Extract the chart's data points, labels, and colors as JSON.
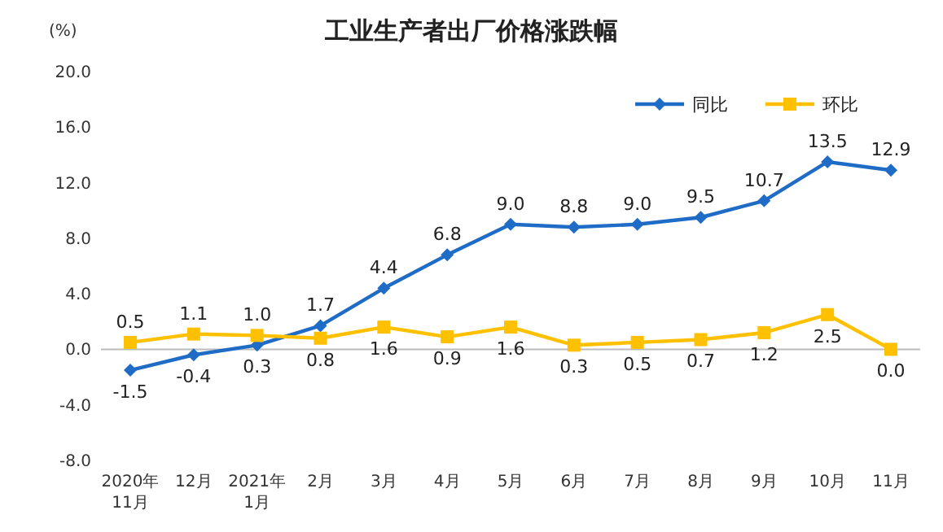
{
  "chart_data": {
    "type": "line",
    "title": "工业生产者出厂价格涨跌幅",
    "ylabel": "(%)",
    "categories": [
      "2020年\n11月",
      "12月",
      "2021年\n1月",
      "2月",
      "3月",
      "4月",
      "5月",
      "6月",
      "7月",
      "8月",
      "9月",
      "10月",
      "11月"
    ],
    "series": [
      {
        "name": "同比",
        "color": "#1f6cc6",
        "marker": "diamond",
        "values": [
          -1.5,
          -0.4,
          0.3,
          1.7,
          4.4,
          6.8,
          9.0,
          8.8,
          9.0,
          9.5,
          10.7,
          13.5,
          12.9
        ],
        "value_labels": [
          "-1.5",
          "-0.4",
          "0.3",
          "1.7",
          "4.4",
          "6.8",
          "9.0",
          "8.8",
          "9.0",
          "9.5",
          "10.7",
          "13.5",
          "12.9"
        ]
      },
      {
        "name": "环比",
        "color": "#ffc000",
        "marker": "square",
        "values": [
          0.5,
          1.1,
          1.0,
          0.8,
          1.6,
          0.9,
          1.6,
          0.3,
          0.5,
          0.7,
          1.2,
          2.5,
          0.0
        ],
        "value_labels": [
          "0.5",
          "1.1",
          "1.0",
          "0.8",
          "1.6",
          "0.9",
          "1.6",
          "0.3",
          "0.5",
          "0.7",
          "1.2",
          "2.5",
          "0.0"
        ]
      }
    ],
    "ylim": [
      -8,
      20
    ],
    "yticks": [
      {
        "value": -8,
        "label": "-8.0"
      },
      {
        "value": -4,
        "label": "-4.0"
      },
      {
        "value": 0,
        "label": "0.0"
      },
      {
        "value": 4,
        "label": "4.0"
      },
      {
        "value": 8,
        "label": "8.0"
      },
      {
        "value": 12,
        "label": "12.0"
      },
      {
        "value": 16,
        "label": "16.0"
      },
      {
        "value": 20,
        "label": "20.0"
      }
    ],
    "legend": "top right",
    "line_style": "solid"
  }
}
